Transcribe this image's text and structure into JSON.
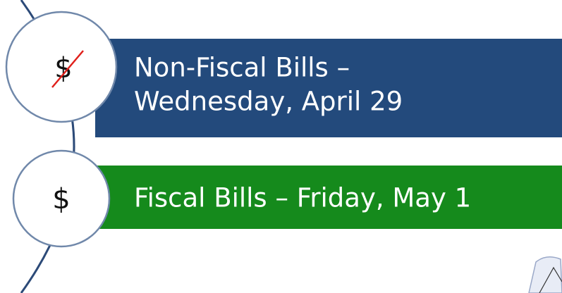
{
  "items": [
    {
      "symbol": "$",
      "lines": [
        "Non-Fiscal Bills –",
        "Wednesday, April 29"
      ]
    },
    {
      "symbol": "$",
      "lines": [
        "Fiscal Bills – Friday, May 1"
      ]
    }
  ]
}
